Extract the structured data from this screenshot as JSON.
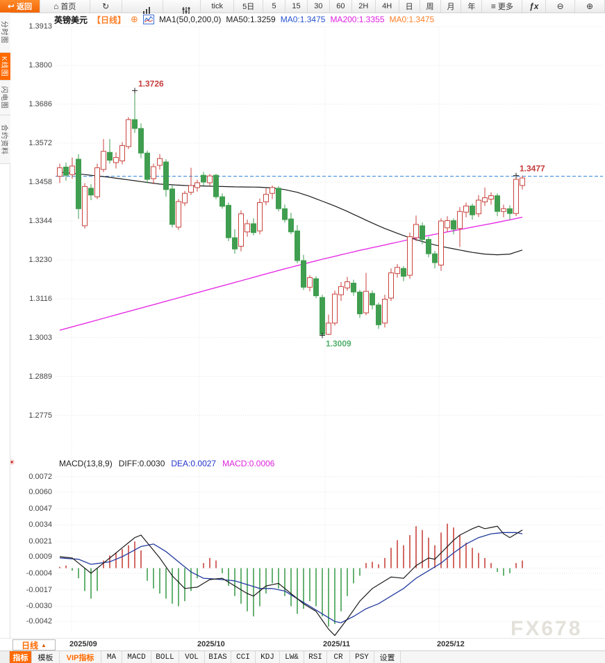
{
  "toolbar": {
    "items": [
      {
        "label": "返回",
        "icon": "back-arrow",
        "style": "primary"
      },
      {
        "label": "首页",
        "icon": "home"
      },
      {
        "icon": "refresh"
      },
      {
        "icon": "bar-chart"
      },
      {
        "icon": "sliders"
      },
      {
        "label": "tick"
      },
      {
        "label": "5日"
      },
      {
        "label": "5"
      },
      {
        "label": "15"
      },
      {
        "label": "30"
      },
      {
        "label": "60"
      },
      {
        "label": "2H"
      },
      {
        "label": "4H"
      },
      {
        "label": "日"
      },
      {
        "label": "周"
      },
      {
        "label": "月"
      },
      {
        "label": "年"
      },
      {
        "label": "更多",
        "icon": "menu"
      },
      {
        "icon": "fx"
      },
      {
        "icon": "zoom-out"
      },
      {
        "icon": "zoom-in"
      }
    ]
  },
  "sidebar": {
    "tabs": [
      {
        "label": "分时图",
        "active": false
      },
      {
        "label": "K线图",
        "active": true
      },
      {
        "label": "闪电图",
        "active": false
      },
      {
        "label": "合约资料",
        "active": false
      }
    ]
  },
  "chart_header": {
    "symbol": "英镑美元",
    "period": "【日线】",
    "ma_label": "MA1(50,0,200,0)",
    "ma50": "MA50:1.3259",
    "ma0_blue": "MA0:1.3475",
    "ma200": "MA200:1.3355",
    "ma0_orange": "MA0:1.3475"
  },
  "macd_header": {
    "title": "MACD(13,8,9)",
    "diff": "DIFF:0.0030",
    "dea": "DEA:0.0027",
    "macd": "MACD:0.0006"
  },
  "x_axis": {
    "period_selector": "日线",
    "labels": [
      "2025/09",
      "2025/10",
      "2025/11",
      "2025/12"
    ]
  },
  "bottom_bar": {
    "tabs": [
      {
        "label": "指标",
        "style": "active-orange"
      },
      {
        "label": "模板"
      },
      {
        "label": "VIP指标",
        "style": "vip"
      },
      {
        "label": "MA",
        "mono": true
      },
      {
        "label": "MACD",
        "mono": true
      },
      {
        "label": "BOLL",
        "mono": true
      },
      {
        "label": "VOL",
        "mono": true
      },
      {
        "label": "BIAS",
        "mono": true
      },
      {
        "label": "CCI",
        "mono": true
      },
      {
        "label": "KDJ",
        "mono": true
      },
      {
        "label": "LW&",
        "mono": true
      },
      {
        "label": "RSI",
        "mono": true
      },
      {
        "label": "CR",
        "mono": true
      },
      {
        "label": "PSY",
        "mono": true
      },
      {
        "label": "设置"
      }
    ]
  },
  "watermark": "FX678",
  "colors": {
    "accent": "#ff6a00",
    "up": "#c8423c",
    "down": "#3f9e4f",
    "ma50": "#1a1a1a",
    "ma200": "#e62ee6",
    "diff": "#1a1a1a",
    "dea": "#223a9e",
    "price_line": "#2b7fd6",
    "annotation_high": "#c43c3c",
    "annotation_low": "#51b06b",
    "grid": "#e5e5e5"
  },
  "chart_data": {
    "type": "candlestick+macd",
    "title": "英镑美元 日线 (GBP/USD daily)",
    "main_y_ticks": [
      "1.3913",
      "1.3800",
      "1.3686",
      "1.3572",
      "1.3458",
      "1.3344",
      "1.3230",
      "1.3116",
      "1.3003",
      "1.2889",
      "1.2775"
    ],
    "macd_y_ticks": [
      "0.0072",
      "0.0060",
      "0.0047",
      "0.0034",
      "0.0021",
      "0.0009",
      "-0.0004",
      "-0.0017",
      "-0.0030",
      "-0.0042"
    ],
    "x_labels": [
      "2025/09",
      "2025/10",
      "2025/11",
      "2025/12"
    ],
    "current_price_line": 1.3475,
    "candles": [
      [
        1.3475,
        1.3512,
        1.3455,
        1.35
      ],
      [
        1.3502,
        1.3515,
        1.3462,
        1.3478
      ],
      [
        1.348,
        1.353,
        1.3468,
        1.3505
      ],
      [
        1.3525,
        1.354,
        1.335,
        1.338
      ],
      [
        1.333,
        1.3455,
        1.3322,
        1.3445
      ],
      [
        1.344,
        1.3452,
        1.3405,
        1.342
      ],
      [
        1.3415,
        1.3512,
        1.3408,
        1.35
      ],
      [
        1.3495,
        1.3584,
        1.3487,
        1.3548
      ],
      [
        1.3545,
        1.3584,
        1.3512,
        1.3522
      ],
      [
        1.3515,
        1.3545,
        1.3498,
        1.353
      ],
      [
        1.352,
        1.3575,
        1.351,
        1.3565
      ],
      [
        1.3562,
        1.3648,
        1.3555,
        1.3641
      ],
      [
        1.3641,
        1.3726,
        1.3602,
        1.3615
      ],
      [
        1.3615,
        1.363,
        1.3528,
        1.3543
      ],
      [
        1.3543,
        1.355,
        1.3455,
        1.3466
      ],
      [
        1.3468,
        1.3512,
        1.3452,
        1.3503
      ],
      [
        1.3507,
        1.354,
        1.3495,
        1.3527
      ],
      [
        1.3517,
        1.3525,
        1.3415,
        1.3436
      ],
      [
        1.3438,
        1.3448,
        1.3325,
        1.3334
      ],
      [
        1.3326,
        1.3408,
        1.3318,
        1.3401
      ],
      [
        1.3397,
        1.3432,
        1.3388,
        1.3425
      ],
      [
        1.3428,
        1.35,
        1.342,
        1.3448
      ],
      [
        1.3442,
        1.3465,
        1.343,
        1.3456
      ],
      [
        1.3478,
        1.3488,
        1.3448,
        1.3458
      ],
      [
        1.3456,
        1.3482,
        1.3448,
        1.3476
      ],
      [
        1.3478,
        1.3482,
        1.3408,
        1.3415
      ],
      [
        1.3415,
        1.3425,
        1.338,
        1.3387
      ],
      [
        1.339,
        1.3398,
        1.3285,
        1.3295
      ],
      [
        1.3295,
        1.332,
        1.3248,
        1.3262
      ],
      [
        1.327,
        1.3375,
        1.3255,
        1.3365
      ],
      [
        1.3312,
        1.3348,
        1.3298,
        1.3336
      ],
      [
        1.3336,
        1.3352,
        1.3302,
        1.331
      ],
      [
        1.3315,
        1.341,
        1.3305,
        1.3398
      ],
      [
        1.34,
        1.344,
        1.339,
        1.3422
      ],
      [
        1.3425,
        1.3448,
        1.3408,
        1.3442
      ],
      [
        1.344,
        1.3446,
        1.3372,
        1.338
      ],
      [
        1.338,
        1.3392,
        1.334,
        1.3348
      ],
      [
        1.335,
        1.3368,
        1.3305,
        1.3312
      ],
      [
        1.3315,
        1.3332,
        1.322,
        1.3228
      ],
      [
        1.3228,
        1.3245,
        1.3142,
        1.315
      ],
      [
        1.315,
        1.3185,
        1.3138,
        1.3178
      ],
      [
        1.3175,
        1.3182,
        1.3118,
        1.3125
      ],
      [
        1.312,
        1.3128,
        1.3009,
        1.3012
      ],
      [
        1.3012,
        1.307,
        1.301,
        1.3045
      ],
      [
        1.3045,
        1.314,
        1.3038,
        1.313
      ],
      [
        1.3128,
        1.3165,
        1.311,
        1.3152
      ],
      [
        1.3148,
        1.318,
        1.314,
        1.3166
      ],
      [
        1.3162,
        1.3172,
        1.3125,
        1.3136
      ],
      [
        1.3136,
        1.3142,
        1.306,
        1.3072
      ],
      [
        1.3075,
        1.3192,
        1.3068,
        1.3138
      ],
      [
        1.3132,
        1.314,
        1.3085,
        1.3098
      ],
      [
        1.3098,
        1.3105,
        1.3028,
        1.304
      ],
      [
        1.3045,
        1.3128,
        1.3032,
        1.3115
      ],
      [
        1.3118,
        1.3205,
        1.311,
        1.3192
      ],
      [
        1.319,
        1.3218,
        1.3178,
        1.3208
      ],
      [
        1.3205,
        1.3212,
        1.3168,
        1.3182
      ],
      [
        1.3185,
        1.331,
        1.3175,
        1.3298
      ],
      [
        1.3295,
        1.336,
        1.3285,
        1.3334
      ],
      [
        1.333,
        1.334,
        1.3276,
        1.329
      ],
      [
        1.329,
        1.3298,
        1.3238,
        1.3248
      ],
      [
        1.3248,
        1.3256,
        1.3205,
        1.3222
      ],
      [
        1.3215,
        1.3352,
        1.3198,
        1.3344
      ],
      [
        1.3324,
        1.3358,
        1.3312,
        1.3345
      ],
      [
        1.3345,
        1.3352,
        1.3305,
        1.332
      ],
      [
        1.3322,
        1.3385,
        1.3268,
        1.3372
      ],
      [
        1.337,
        1.3398,
        1.3355,
        1.3388
      ],
      [
        1.3388,
        1.3395,
        1.3348,
        1.3362
      ],
      [
        1.3365,
        1.342,
        1.3356,
        1.3405
      ],
      [
        1.34,
        1.3442,
        1.3388,
        1.3412
      ],
      [
        1.3408,
        1.3428,
        1.3392,
        1.3418
      ],
      [
        1.3418,
        1.3425,
        1.3358,
        1.3372
      ],
      [
        1.3372,
        1.3392,
        1.3355,
        1.338
      ],
      [
        1.338,
        1.339,
        1.3348,
        1.3366
      ],
      [
        1.3366,
        1.3477,
        1.3358,
        1.3466
      ],
      [
        1.3448,
        1.3477,
        1.3436,
        1.347
      ]
    ],
    "ma50_anchors": [
      [
        0,
        1.3487
      ],
      [
        4,
        1.348
      ],
      [
        8,
        1.3472
      ],
      [
        12,
        1.3462
      ],
      [
        16,
        1.3452
      ],
      [
        20,
        1.3448
      ],
      [
        24,
        1.3446
      ],
      [
        28,
        1.3444
      ],
      [
        32,
        1.3443
      ],
      [
        34,
        1.3441
      ],
      [
        36,
        1.3436
      ],
      [
        38,
        1.3428
      ],
      [
        40,
        1.3416
      ],
      [
        42,
        1.3402
      ],
      [
        44,
        1.3388
      ],
      [
        46,
        1.3372
      ],
      [
        48,
        1.3355
      ],
      [
        50,
        1.3338
      ],
      [
        52,
        1.3322
      ],
      [
        54,
        1.3308
      ],
      [
        56,
        1.3295
      ],
      [
        58,
        1.3284
      ],
      [
        60,
        1.3274
      ],
      [
        62,
        1.3266
      ],
      [
        64,
        1.3259
      ],
      [
        66,
        1.3252
      ],
      [
        68,
        1.3247
      ],
      [
        70,
        1.3245
      ],
      [
        72,
        1.3247
      ],
      [
        74,
        1.3259
      ]
    ],
    "ma200_anchors": [
      [
        0,
        1.3024
      ],
      [
        6,
        1.3054
      ],
      [
        12,
        1.3084
      ],
      [
        18,
        1.3114
      ],
      [
        24,
        1.3144
      ],
      [
        30,
        1.3174
      ],
      [
        36,
        1.3204
      ],
      [
        42,
        1.3232
      ],
      [
        48,
        1.3258
      ],
      [
        54,
        1.3282
      ],
      [
        58,
        1.3298
      ],
      [
        62,
        1.3312
      ],
      [
        66,
        1.3326
      ],
      [
        70,
        1.334
      ],
      [
        74,
        1.3355
      ]
    ],
    "macd": {
      "hist": [
        1,
        2,
        -2,
        -8,
        -18,
        -24,
        -18,
        6,
        10,
        12,
        15,
        18,
        21,
        14,
        -10,
        -16,
        -20,
        -24,
        -28,
        -30,
        -26,
        -18,
        -8,
        4,
        8,
        6,
        -4,
        -14,
        -22,
        -28,
        -34,
        -38,
        -30,
        -20,
        -12,
        -16,
        -22,
        -30,
        -36,
        -32,
        -26,
        -30,
        -38,
        -46,
        -44,
        -34,
        -22,
        -12,
        -6,
        4,
        5,
        3,
        8,
        16,
        22,
        18,
        26,
        33,
        30,
        24,
        18,
        28,
        35,
        32,
        26,
        20,
        16,
        12,
        8,
        4,
        -3,
        -6,
        -4,
        4,
        6
      ],
      "hist_unit": 0.0001,
      "diff_anchors": [
        [
          0,
          0.0009
        ],
        [
          2,
          0.0008
        ],
        [
          4,
          0.0
        ],
        [
          5,
          -0.0004
        ],
        [
          7,
          0.0004
        ],
        [
          10,
          0.0016
        ],
        [
          12,
          0.0024
        ],
        [
          13,
          0.0026
        ],
        [
          14,
          0.002
        ],
        [
          16,
          0.0008
        ],
        [
          18,
          -0.0006
        ],
        [
          20,
          -0.0016
        ],
        [
          22,
          -0.0015
        ],
        [
          24,
          -0.0009
        ],
        [
          26,
          -0.0008
        ],
        [
          28,
          -0.0014
        ],
        [
          30,
          -0.002
        ],
        [
          31,
          -0.0022
        ],
        [
          33,
          -0.0014
        ],
        [
          35,
          -0.0012
        ],
        [
          37,
          -0.002
        ],
        [
          39,
          -0.0028
        ],
        [
          41,
          -0.0034
        ],
        [
          43,
          -0.0048
        ],
        [
          44,
          -0.0053
        ],
        [
          46,
          -0.004
        ],
        [
          48,
          -0.0026
        ],
        [
          50,
          -0.0016
        ],
        [
          52,
          -0.001
        ],
        [
          53,
          -0.0007
        ],
        [
          55,
          -0.0008
        ],
        [
          57,
          0.0002
        ],
        [
          59,
          0.0008
        ],
        [
          60,
          0.0007
        ],
        [
          61,
          0.0012
        ],
        [
          63,
          0.0022
        ],
        [
          64,
          0.0026
        ],
        [
          66,
          0.0031
        ],
        [
          67,
          0.0033
        ],
        [
          68,
          0.0031
        ],
        [
          70,
          0.0033
        ],
        [
          71,
          0.0027
        ],
        [
          72,
          0.0024
        ],
        [
          74,
          0.003
        ]
      ],
      "dea_anchors": [
        [
          0,
          0.0008
        ],
        [
          3,
          0.0007
        ],
        [
          5,
          0.0003
        ],
        [
          8,
          0.0005
        ],
        [
          10,
          0.0009
        ],
        [
          13,
          0.0017
        ],
        [
          15,
          0.0019
        ],
        [
          17,
          0.0013
        ],
        [
          19,
          0.0005
        ],
        [
          21,
          -0.0003
        ],
        [
          23,
          -0.0008
        ],
        [
          26,
          -0.0009
        ],
        [
          28,
          -0.001
        ],
        [
          30,
          -0.0013
        ],
        [
          32,
          -0.0016
        ],
        [
          34,
          -0.0016
        ],
        [
          36,
          -0.0018
        ],
        [
          38,
          -0.0024
        ],
        [
          40,
          -0.003
        ],
        [
          42,
          -0.0036
        ],
        [
          44,
          -0.0042
        ],
        [
          45,
          -0.0043
        ],
        [
          47,
          -0.0038
        ],
        [
          49,
          -0.0032
        ],
        [
          51,
          -0.0028
        ],
        [
          53,
          -0.0022
        ],
        [
          55,
          -0.0016
        ],
        [
          57,
          -0.0008
        ],
        [
          59,
          -0.0002
        ],
        [
          61,
          0.0004
        ],
        [
          63,
          0.0012
        ],
        [
          65,
          0.0019
        ],
        [
          67,
          0.0024
        ],
        [
          69,
          0.0027
        ],
        [
          71,
          0.0028
        ],
        [
          73,
          0.0028
        ],
        [
          74,
          0.0027
        ]
      ]
    },
    "annotations": [
      {
        "text": "1.3726",
        "candle": 12,
        "at": "high",
        "color": "#c43c3c"
      },
      {
        "text": "1.3009",
        "candle": 42,
        "at": "low",
        "color": "#51b06b"
      },
      {
        "text": "1.3477",
        "candle": 73,
        "at": "high",
        "color": "#c43c3c"
      }
    ]
  }
}
